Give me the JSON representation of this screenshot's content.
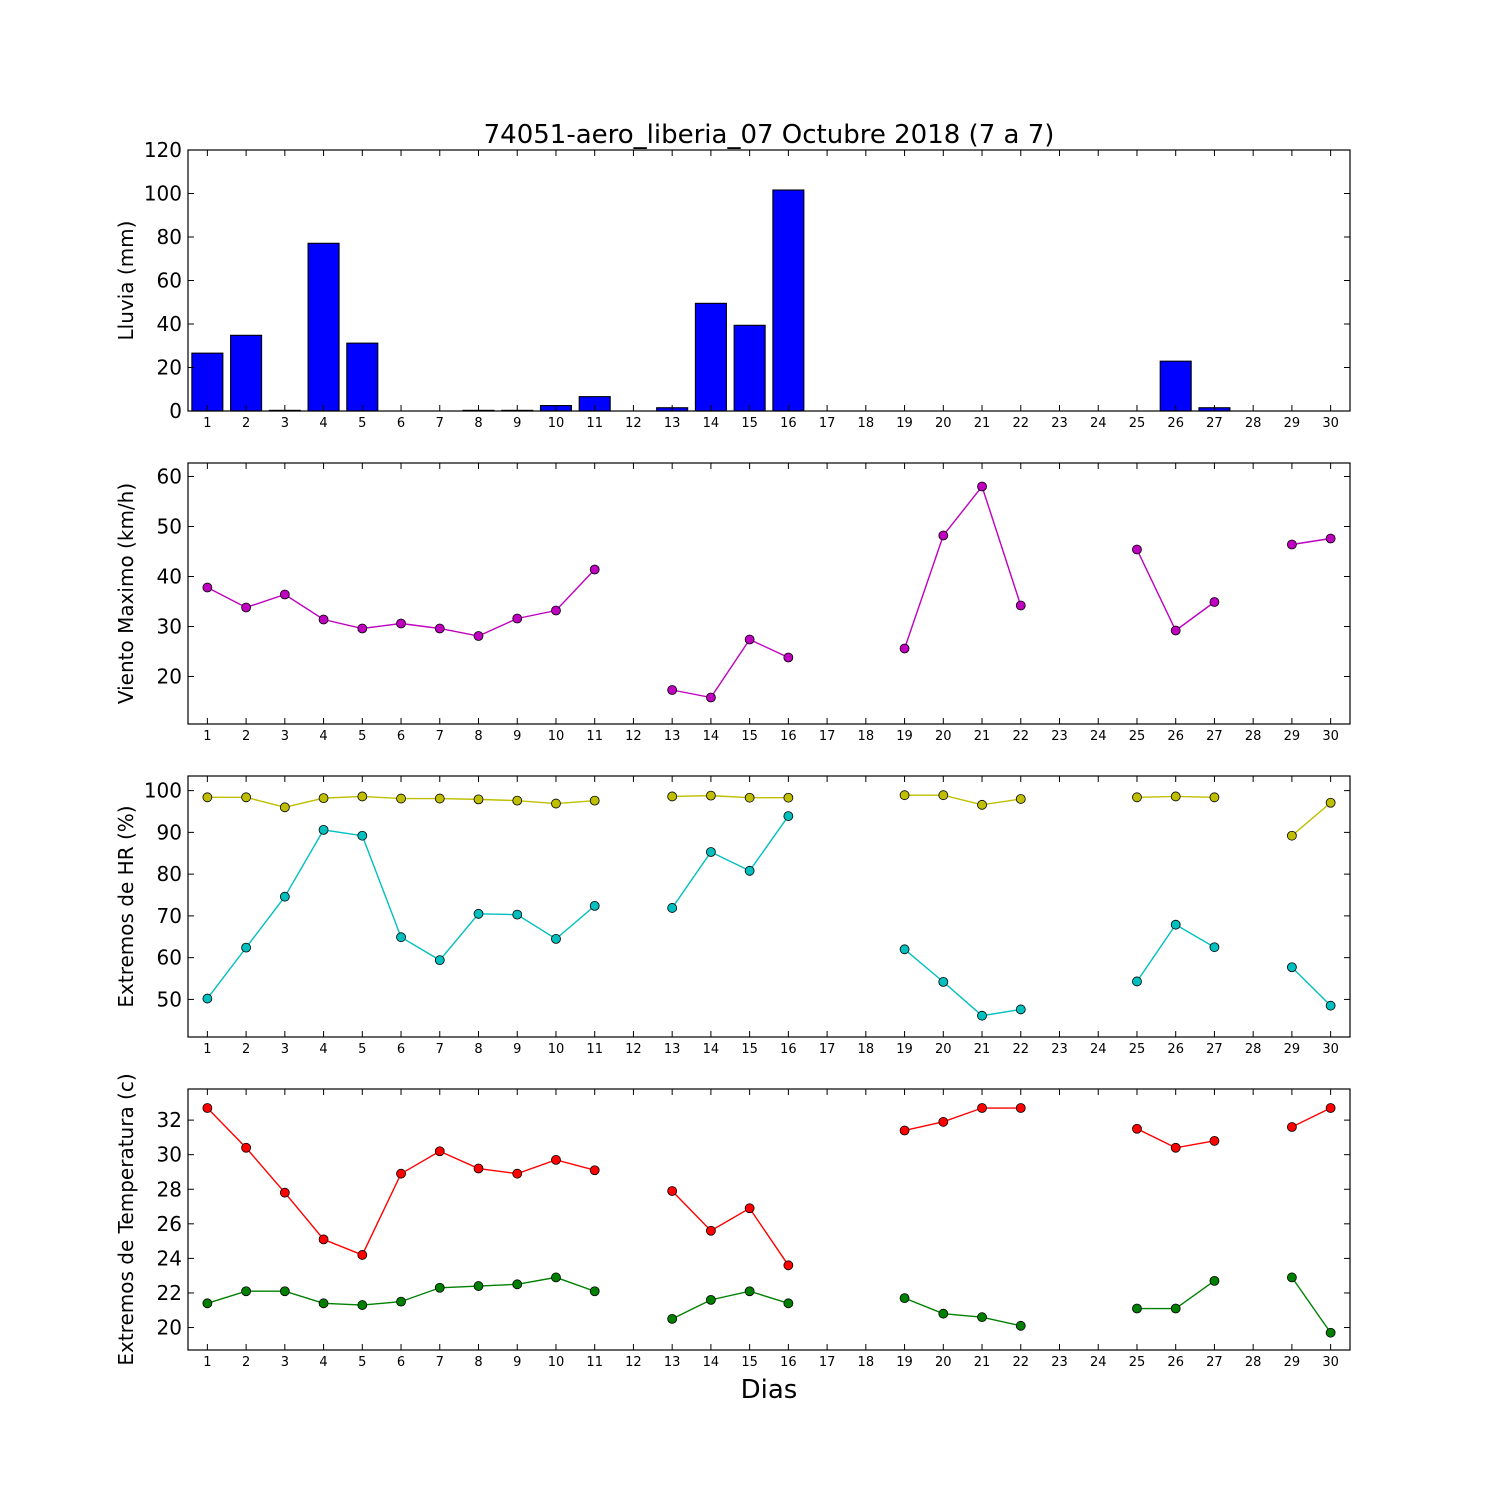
{
  "title": "74051-aero_liberia_07 Octubre 2018  (7 a 7)",
  "xlabel": "Dias",
  "days": [
    1,
    2,
    3,
    4,
    5,
    6,
    7,
    8,
    9,
    10,
    11,
    12,
    13,
    14,
    15,
    16,
    17,
    18,
    19,
    20,
    21,
    22,
    23,
    24,
    25,
    26,
    27,
    28,
    29,
    30
  ],
  "chart_data": [
    {
      "type": "bar",
      "ylabel": "Lluvia (mm)",
      "ylim": [
        0,
        120
      ],
      "yticks": [
        0,
        20,
        40,
        60,
        80,
        100,
        120
      ],
      "xlim": [
        0.5,
        30.5
      ],
      "color": "#0000ff",
      "categories": [
        1,
        2,
        3,
        4,
        5,
        6,
        7,
        8,
        9,
        10,
        11,
        12,
        13,
        14,
        15,
        16,
        17,
        18,
        19,
        20,
        21,
        22,
        23,
        24,
        25,
        26,
        27,
        28,
        29,
        30
      ],
      "values": [
        26.6,
        34.8,
        0.3,
        77.1,
        31.2,
        0,
        0,
        0.3,
        0.3,
        2.5,
        6.6,
        0,
        1.5,
        49.5,
        39.4,
        101.6,
        0,
        0,
        0,
        0,
        0,
        0,
        0,
        0,
        0,
        22.9,
        1.5,
        0,
        0,
        0
      ]
    },
    {
      "type": "line",
      "ylabel": "Viento Maximo (km/h)",
      "ylim": [
        10.5,
        62.7
      ],
      "yticks": [
        20,
        30,
        40,
        50,
        60
      ],
      "xlim": [
        0.5,
        30.5
      ],
      "series": [
        {
          "color": "#bf00bf",
          "x": [
            1,
            2,
            3,
            4,
            5,
            6,
            7,
            8,
            9,
            10,
            11,
            12,
            13,
            14,
            15,
            16,
            17,
            18,
            19,
            20,
            21,
            22,
            23,
            24,
            25,
            26,
            27,
            28,
            29,
            30
          ],
          "values": [
            37.8,
            33.8,
            36.4,
            31.4,
            29.6,
            30.6,
            29.6,
            28.1,
            31.6,
            33.2,
            41.4,
            null,
            17.3,
            15.8,
            27.4,
            23.8,
            null,
            null,
            25.6,
            48.2,
            58.0,
            34.2,
            null,
            null,
            45.4,
            29.2,
            34.9,
            null,
            46.4,
            47.6
          ]
        }
      ]
    },
    {
      "type": "line",
      "ylabel": "Extremos de HR (%)",
      "ylim": [
        41,
        103.5
      ],
      "yticks": [
        50,
        60,
        70,
        80,
        90,
        100
      ],
      "xlim": [
        0.5,
        30.5
      ],
      "series": [
        {
          "color": "#bfbf00",
          "x": [
            1,
            2,
            3,
            4,
            5,
            6,
            7,
            8,
            9,
            10,
            11,
            12,
            13,
            14,
            15,
            16,
            17,
            18,
            19,
            20,
            21,
            22,
            23,
            24,
            25,
            26,
            27,
            28,
            29,
            30
          ],
          "values": [
            98.4,
            98.4,
            96.0,
            98.2,
            98.6,
            98.1,
            98.1,
            97.9,
            97.6,
            96.9,
            97.6,
            null,
            98.6,
            98.8,
            98.3,
            98.3,
            null,
            null,
            98.9,
            98.9,
            96.6,
            98.0,
            null,
            null,
            98.4,
            98.6,
            98.4,
            null,
            89.2,
            97.1
          ]
        },
        {
          "color": "#00bfbf",
          "x": [
            1,
            2,
            3,
            4,
            5,
            6,
            7,
            8,
            9,
            10,
            11,
            12,
            13,
            14,
            15,
            16,
            17,
            18,
            19,
            20,
            21,
            22,
            23,
            24,
            25,
            26,
            27,
            28,
            29,
            30
          ],
          "values": [
            50.2,
            62.4,
            74.6,
            90.6,
            89.2,
            64.9,
            59.4,
            70.5,
            70.3,
            64.5,
            72.4,
            null,
            71.9,
            85.3,
            80.8,
            93.9,
            null,
            null,
            62.0,
            54.2,
            46.1,
            47.6,
            null,
            null,
            54.3,
            67.9,
            62.5,
            null,
            57.7,
            48.5
          ]
        }
      ]
    },
    {
      "type": "line",
      "ylabel": "Extremos de Temperatura (c)",
      "ylim": [
        18.7,
        33.8
      ],
      "yticks": [
        20,
        22,
        24,
        26,
        28,
        30,
        32
      ],
      "xlim": [
        0.5,
        30.5
      ],
      "series": [
        {
          "color": "#ff0000",
          "x": [
            1,
            2,
            3,
            4,
            5,
            6,
            7,
            8,
            9,
            10,
            11,
            12,
            13,
            14,
            15,
            16,
            17,
            18,
            19,
            20,
            21,
            22,
            23,
            24,
            25,
            26,
            27,
            28,
            29,
            30
          ],
          "values": [
            32.7,
            30.4,
            27.8,
            25.1,
            24.2,
            28.9,
            30.2,
            29.2,
            28.9,
            29.7,
            29.1,
            null,
            27.9,
            25.6,
            26.9,
            23.6,
            null,
            null,
            31.4,
            31.9,
            32.7,
            32.7,
            null,
            null,
            31.5,
            30.4,
            30.8,
            null,
            31.6,
            32.7
          ]
        },
        {
          "color": "#008000",
          "x": [
            1,
            2,
            3,
            4,
            5,
            6,
            7,
            8,
            9,
            10,
            11,
            12,
            13,
            14,
            15,
            16,
            17,
            18,
            19,
            20,
            21,
            22,
            23,
            24,
            25,
            26,
            27,
            28,
            29,
            30
          ],
          "values": [
            21.4,
            22.1,
            22.1,
            21.4,
            21.3,
            21.5,
            22.3,
            22.4,
            22.5,
            22.9,
            22.1,
            null,
            20.5,
            21.6,
            22.1,
            21.4,
            null,
            null,
            21.7,
            20.8,
            20.6,
            20.1,
            null,
            null,
            21.1,
            21.1,
            22.7,
            null,
            22.9,
            19.7
          ]
        }
      ]
    }
  ]
}
